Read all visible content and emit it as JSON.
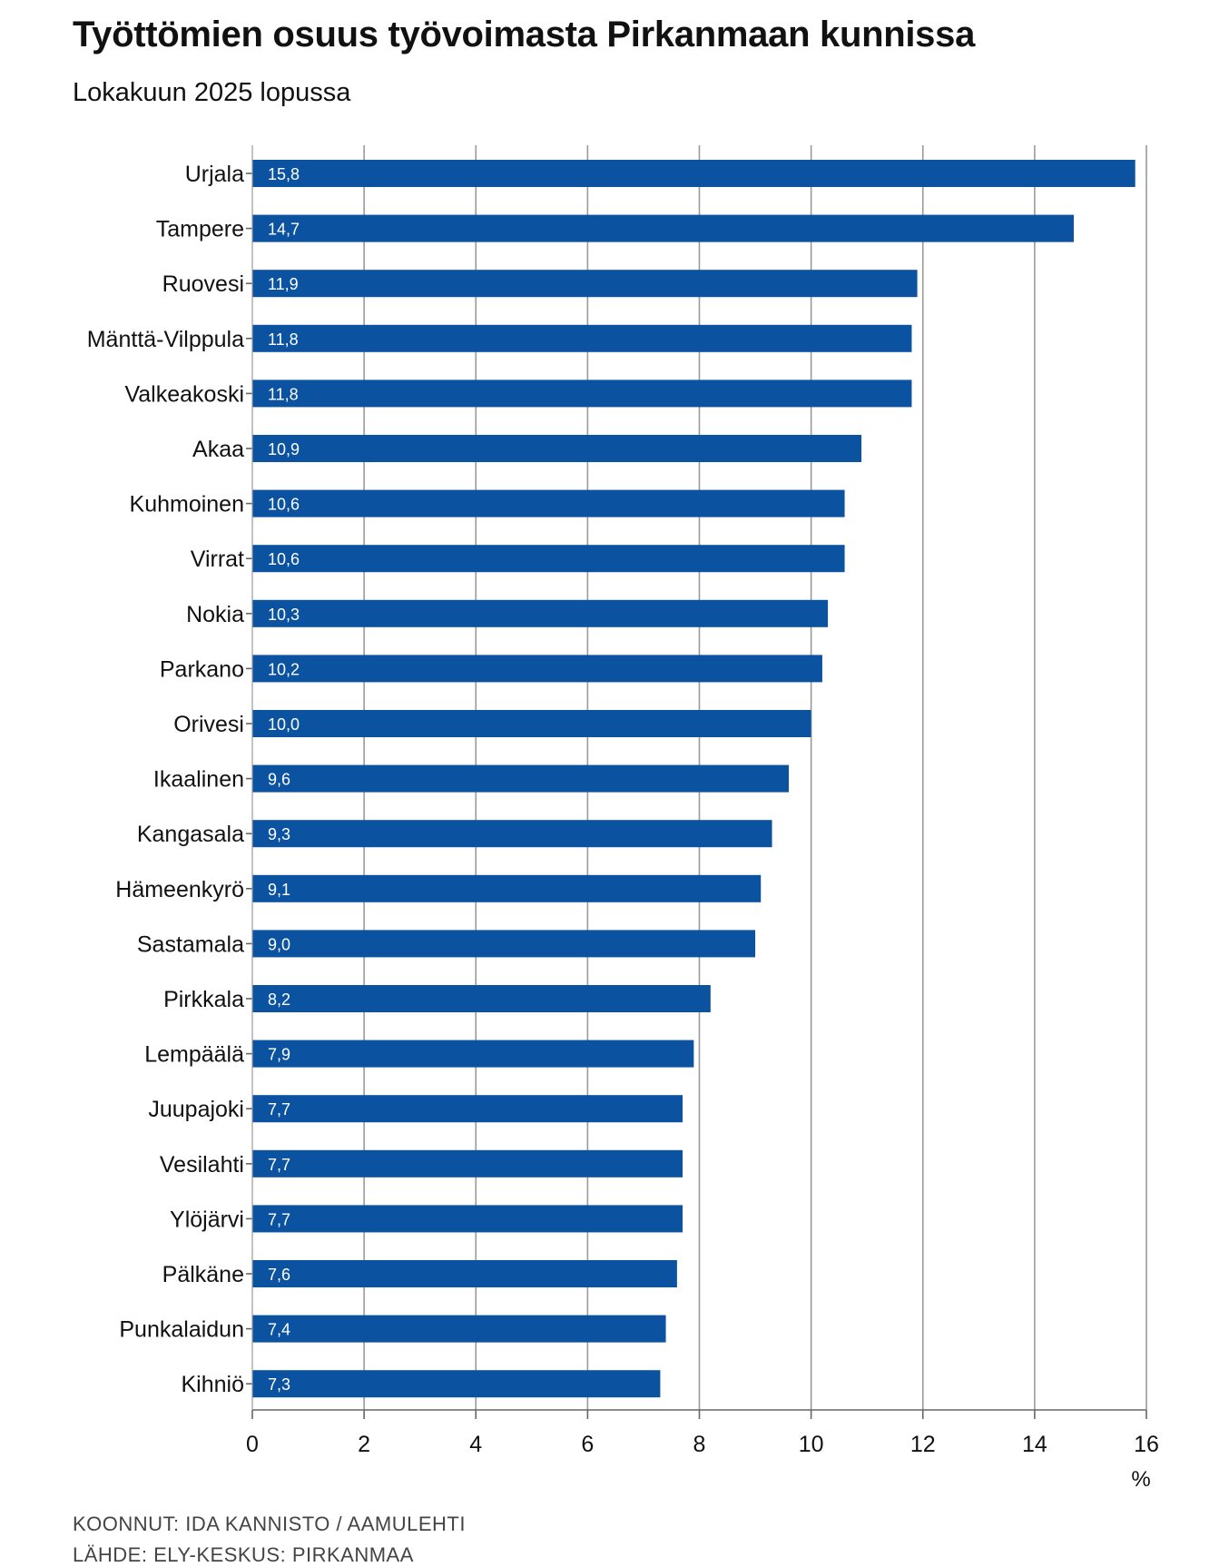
{
  "title": "Työttömien osuus työvoimasta Pirkanmaan kunnissa",
  "subtitle": "Lokakuun 2025 lopussa",
  "credits": {
    "compiled": "KOONNUT: IDA KANNISTO / AAMULEHTI",
    "source": "LÄHDE: ELY-KESKUS: PIRKANMAA"
  },
  "colors": {
    "bar": "#0b52a0",
    "grid": "#9a9a9a",
    "axis": "#666666",
    "bar_label": "#ffffff"
  },
  "chart_data": {
    "type": "bar",
    "orientation": "horizontal",
    "title": "Työttömien osuus työvoimasta Pirkanmaan kunnissa",
    "subtitle": "Lokakuun 2025 lopussa",
    "xlabel": "%",
    "ylabel": "",
    "xlim": [
      0,
      16
    ],
    "xticks": [
      0,
      2,
      4,
      6,
      8,
      10,
      12,
      14,
      16
    ],
    "grid": true,
    "categories": [
      "Urjala",
      "Tampere",
      "Ruovesi",
      "Mänttä-Vilppula",
      "Valkeakoski",
      "Akaa",
      "Kuhmoinen",
      "Virrat",
      "Nokia",
      "Parkano",
      "Orivesi",
      "Ikaalinen",
      "Kangasala",
      "Hämeenkyrö",
      "Sastamala",
      "Pirkkala",
      "Lempäälä",
      "Juupajoki",
      "Vesilahti",
      "Ylöjärvi",
      "Pälkäne",
      "Punkalaidun",
      "Kihniö"
    ],
    "values": [
      15.8,
      14.7,
      11.9,
      11.8,
      11.8,
      10.9,
      10.6,
      10.6,
      10.3,
      10.2,
      10.0,
      9.6,
      9.3,
      9.1,
      9.0,
      8.2,
      7.9,
      7.7,
      7.7,
      7.7,
      7.6,
      7.4,
      7.3
    ],
    "value_labels": [
      "15,8",
      "14,7",
      "11,9",
      "11,8",
      "11,8",
      "10,9",
      "10,6",
      "10,6",
      "10,3",
      "10,2",
      "10,0",
      "9,6",
      "9,3",
      "9,1",
      "9,0",
      "8,2",
      "7,9",
      "7,7",
      "7,7",
      "7,7",
      "7,6",
      "7,4",
      "7,3"
    ]
  }
}
